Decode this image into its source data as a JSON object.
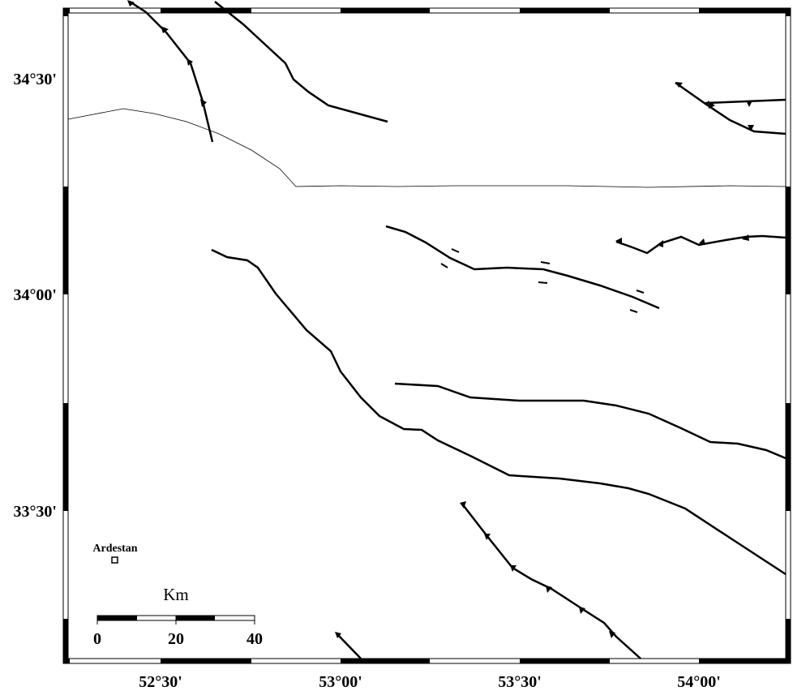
{
  "map": {
    "lat_labels": [
      "34°30'",
      "34°00'",
      "33°30'"
    ],
    "lon_labels": [
      "52°30'",
      "53°00'",
      "53°30'",
      "54°00'"
    ],
    "place": "Ardestan",
    "scale_bar": {
      "unit": "Km",
      "labels": [
        "0",
        "20",
        "40"
      ]
    }
  }
}
